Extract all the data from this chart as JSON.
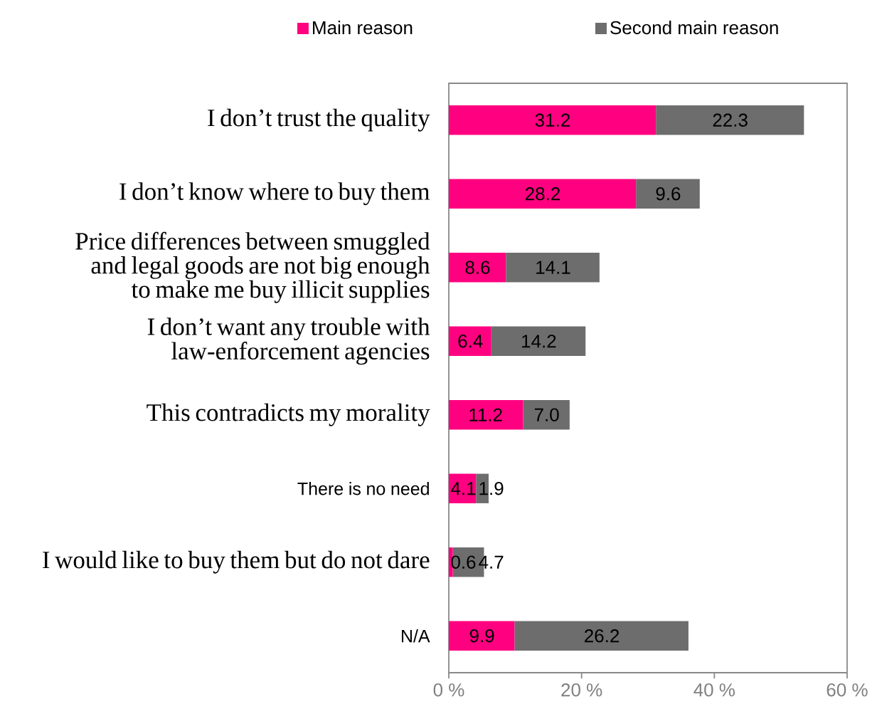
{
  "chart_data": {
    "type": "bar",
    "orientation": "horizontal",
    "stacked": true,
    "categories": [
      "I don’t trust the quality",
      "I don’t know where to buy them",
      "Price differences between smuggled and legal goods are not big enough to make me buy illicit supplies",
      "I don’t want any trouble with law-enforcement agencies",
      "This contradicts my morality",
      "There is no need",
      "I would like to buy them but do not dare",
      "N/A"
    ],
    "series": [
      {
        "name": "Main reason",
        "color": "#ff0080",
        "values": [
          31.2,
          28.2,
          8.6,
          6.4,
          11.2,
          4.1,
          0.6,
          9.9
        ],
        "value_labels": [
          "31.2",
          "28.2",
          "8.6",
          "6.4",
          "11.2",
          "4.1",
          "0.6",
          "9.9"
        ]
      },
      {
        "name": "Second main reason",
        "color": "#6d6d6d",
        "values": [
          22.3,
          9.6,
          14.1,
          14.2,
          7.0,
          1.9,
          4.7,
          26.2
        ],
        "value_labels": [
          "22.3",
          "9.6",
          "14.1",
          "14.2",
          "7.0",
          "1.9",
          "4.7",
          "26.2"
        ]
      }
    ],
    "xlim": [
      0,
      60
    ],
    "xticks": [
      {
        "value": 0,
        "label": "0 %"
      },
      {
        "value": 20,
        "label": "20 %"
      },
      {
        "value": 40,
        "label": "40 %"
      },
      {
        "value": 60,
        "label": "60 %"
      }
    ],
    "legend": "top"
  }
}
